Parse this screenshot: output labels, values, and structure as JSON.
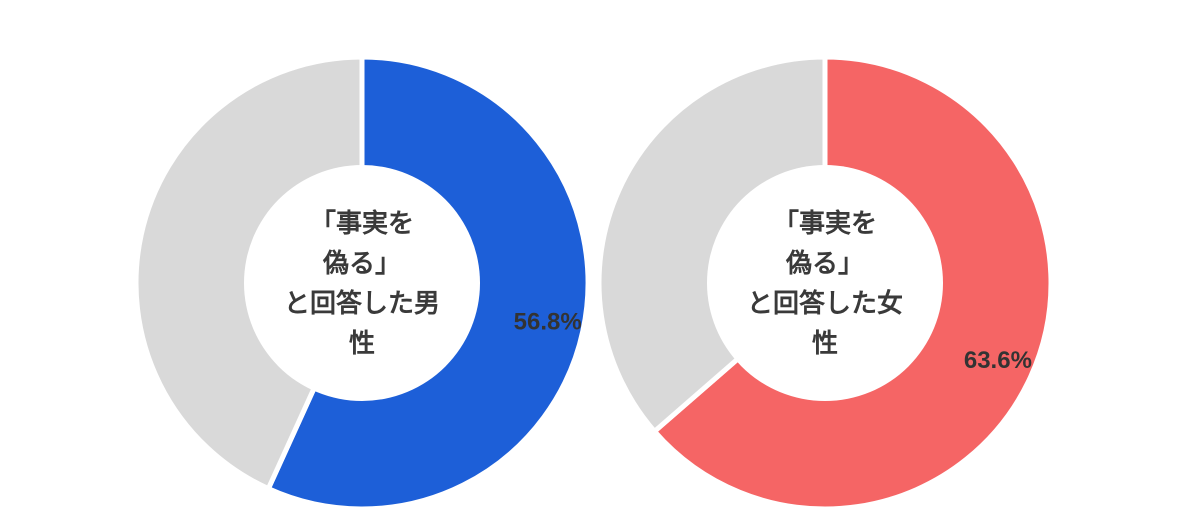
{
  "chart_data": [
    {
      "type": "pie",
      "variant": "donut",
      "center_label_lines": [
        "「事実を",
        "偽る」",
        "と回答した男",
        "性"
      ],
      "slices": [
        {
          "value": 56.8,
          "label": "56.8%",
          "color": "#1d5fd8"
        },
        {
          "value": 43.2,
          "label": "",
          "color": "#d9d9d9"
        }
      ]
    },
    {
      "type": "pie",
      "variant": "donut",
      "center_label_lines": [
        "「事実を",
        "偽る」",
        "と回答した女",
        "性"
      ],
      "slices": [
        {
          "value": 63.6,
          "label": "63.6%",
          "color": "#f56565"
        },
        {
          "value": 36.4,
          "label": "",
          "color": "#d9d9d9"
        }
      ]
    }
  ]
}
